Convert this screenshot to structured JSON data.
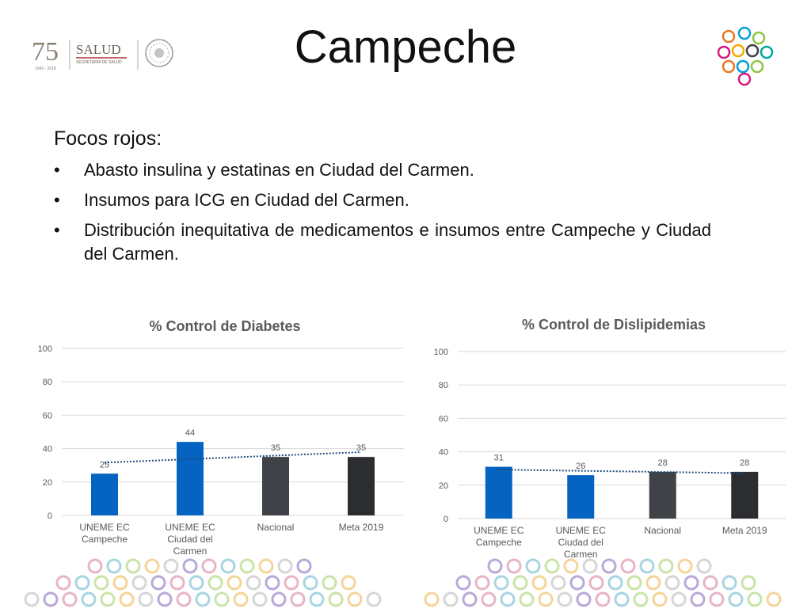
{
  "slide": {
    "title": "Campeche",
    "heading": "Focos rojos:",
    "bullets": [
      "Abasto insulina y estatinas en Ciudad del Carmen.",
      "Insumos para ICG en Ciudad del Carmen.",
      "Distribución inequitativa de medicamentos e insumos entre Campeche y Ciudad del Carmen."
    ],
    "logo_left": {
      "number": "75",
      "brand": "SALUD",
      "subtitle": "SECRETARÍA DE SALUD",
      "years": "1943 - 2018"
    }
  },
  "colors": {
    "blue": "#0563C1",
    "gray": "#3F4246",
    "dark": "#2B2D31",
    "trend": "#1F4E79",
    "gridline": "#D9D9D9",
    "text": "#595959"
  },
  "chart_data": [
    {
      "type": "bar",
      "title": "% Control de Diabetes",
      "categories": [
        "UNEME EC Campeche",
        "UNEME EC Ciudad del Carmen",
        "Nacional",
        "Meta 2019"
      ],
      "category_lines": [
        [
          "UNEME EC",
          "Campeche"
        ],
        [
          "UNEME EC",
          "Ciudad del",
          "Carmen"
        ],
        [
          "Nacional"
        ],
        [
          "Meta 2019"
        ]
      ],
      "values": [
        25,
        44,
        35,
        35
      ],
      "bar_colors": [
        "#0563C1",
        "#0563C1",
        "#3F4246",
        "#2B2D31"
      ],
      "ylim": [
        0,
        100
      ],
      "yticks": [
        0,
        20,
        40,
        60,
        80,
        100
      ],
      "trendline": "linear, dotted",
      "grid": true,
      "legend": "none"
    },
    {
      "type": "bar",
      "title": "% Control de Dislipidemias",
      "categories": [
        "UNEME EC Campeche",
        "UNEME EC Ciudad del Carmen",
        "Nacional",
        "Meta 2019"
      ],
      "category_lines": [
        [
          "UNEME EC",
          "Campeche"
        ],
        [
          "UNEME EC",
          "Ciudad del",
          "Carmen"
        ],
        [
          "Nacional"
        ],
        [
          "Meta 2019"
        ]
      ],
      "values": [
        31,
        26,
        28,
        28
      ],
      "bar_colors": [
        "#0563C1",
        "#0563C1",
        "#3F4246",
        "#2B2D31"
      ],
      "ylim": [
        0,
        100
      ],
      "yticks": [
        0,
        20,
        40,
        60,
        80,
        100
      ],
      "trendline": "linear, dotted",
      "grid": true,
      "legend": "none"
    }
  ]
}
